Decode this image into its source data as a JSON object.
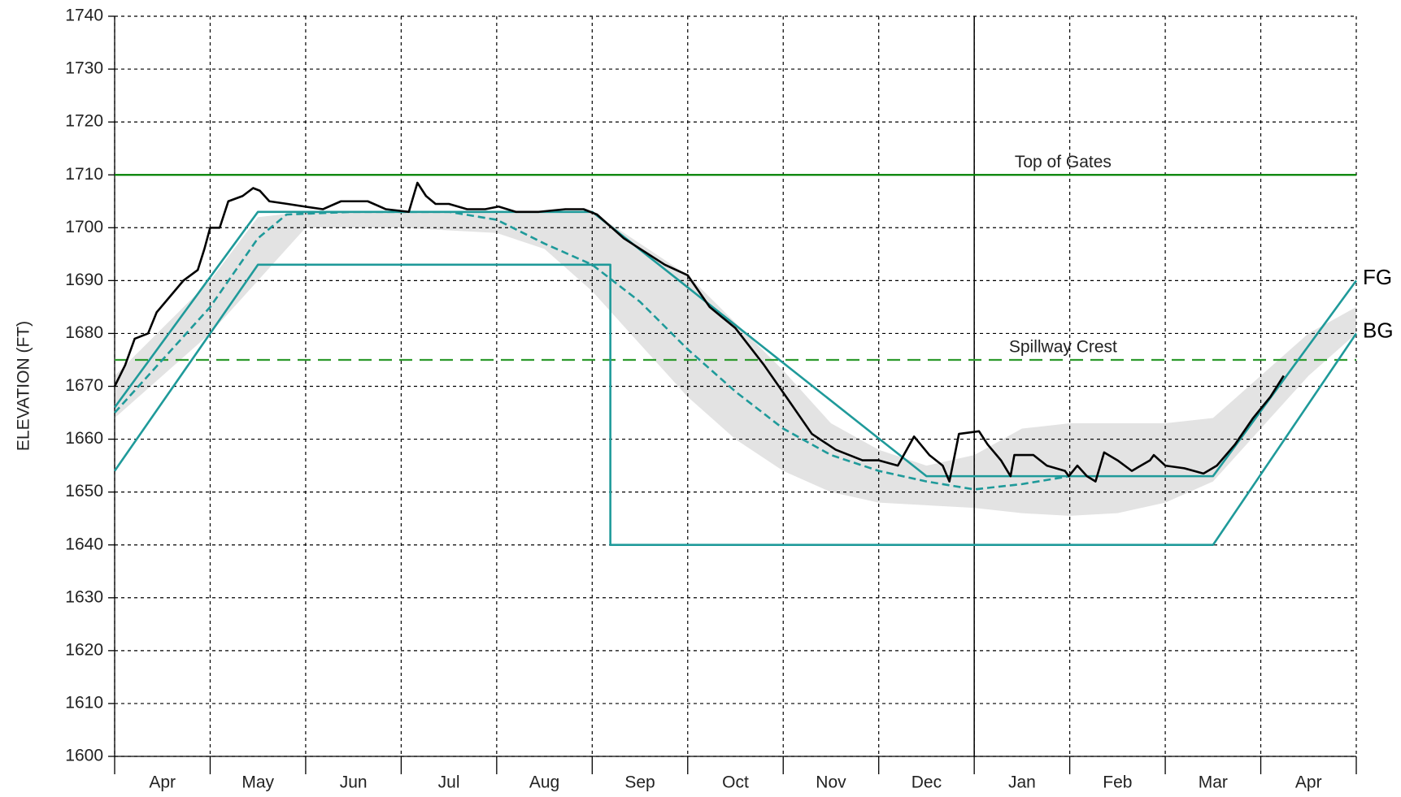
{
  "chart_data": {
    "type": "line",
    "y_label": "ELEVATION (FT)",
    "categories": [
      "Apr",
      "May",
      "Jun",
      "Jul",
      "Aug",
      "Sep",
      "Oct",
      "Nov",
      "Dec",
      "Jan",
      "Feb",
      "Mar",
      "Apr"
    ],
    "xlim": [
      0,
      13
    ],
    "xticks": [
      0,
      1,
      2,
      3,
      4,
      5,
      6,
      7,
      8,
      9,
      10,
      11,
      12,
      13
    ],
    "ylim": [
      1600,
      1740
    ],
    "yticks": [
      1600,
      1610,
      1620,
      1630,
      1640,
      1650,
      1660,
      1670,
      1680,
      1690,
      1700,
      1710,
      1720,
      1730,
      1740
    ],
    "grid": true,
    "marker_x": 9,
    "reference_lines": [
      {
        "label": "Top of Gates",
        "value": 1710,
        "color": "#008000",
        "dashed": false
      },
      {
        "label": "Spillway Crest",
        "value": 1675,
        "color": "#2e9a2e",
        "dashed": true
      }
    ],
    "band": {
      "color": "#e3e3e3",
      "x": [
        0,
        0.5,
        1,
        1.5,
        2,
        3,
        4,
        4.5,
        5,
        5.5,
        6,
        6.5,
        7,
        7.5,
        8,
        8.5,
        9,
        9.5,
        10,
        10.5,
        11,
        11.5,
        12,
        12.5,
        13
      ],
      "upper": [
        1672,
        1681,
        1690,
        1702,
        1703,
        1703,
        1703,
        1703,
        1703,
        1697,
        1691,
        1682,
        1673,
        1663,
        1658,
        1655,
        1657,
        1662,
        1663,
        1663,
        1663,
        1664,
        1672,
        1680,
        1685
      ],
      "lower": [
        1664,
        1672,
        1680,
        1690,
        1700,
        1700,
        1699,
        1696,
        1688,
        1678,
        1668,
        1660,
        1654,
        1650,
        1648,
        1647.5,
        1647,
        1646,
        1645.5,
        1646,
        1648,
        1652,
        1662,
        1672,
        1680
      ]
    },
    "series": [
      {
        "name": "FG",
        "color": "#1f9a9a",
        "dashed": false,
        "x": [
          0,
          1.5,
          5,
          8.5,
          11.5,
          13
        ],
        "values": [
          1666,
          1703,
          1703,
          1653,
          1653,
          1690
        ]
      },
      {
        "name": "BG",
        "color": "#1f9a9a",
        "dashed": false,
        "x": [
          0,
          1.5,
          5.19,
          5.19,
          11.5,
          13
        ],
        "values": [
          1654,
          1693,
          1693,
          1640,
          1640,
          1680
        ]
      },
      {
        "color": "#1f9a9a",
        "dashed": true,
        "x": [
          0,
          0.5,
          1,
          1.5,
          1.8,
          2.5,
          3.5,
          4,
          4.5,
          5,
          5.5,
          6,
          6.5,
          7,
          7.5,
          8,
          8.5,
          9,
          9.5,
          10
        ],
        "values": [
          1665,
          1675,
          1685,
          1698,
          1702.5,
          1703,
          1703,
          1701.5,
          1697,
          1693,
          1686,
          1677,
          1669,
          1662,
          1657,
          1654,
          1652,
          1650.5,
          1651.5,
          1653
        ]
      },
      {
        "color": "#000000",
        "dashed": false,
        "x": [
          0,
          0.11,
          0.21,
          0.35,
          0.44,
          0.58,
          0.72,
          0.87,
          0.94,
          1.0,
          1.1,
          1.19,
          1.34,
          1.45,
          1.52,
          1.62,
          1.81,
          1.99,
          2.18,
          2.37,
          2.65,
          2.84,
          3.08,
          3.17,
          3.26,
          3.36,
          3.5,
          3.69,
          3.88,
          4.02,
          4.2,
          4.44,
          4.72,
          4.91,
          5.05,
          5.33,
          5.76,
          6.0,
          6.23,
          6.5,
          6.8,
          7.07,
          7.3,
          7.55,
          7.83,
          8.0,
          8.2,
          8.37,
          8.53,
          8.67,
          8.74,
          8.84,
          9.05,
          9.14,
          9.28,
          9.38,
          9.42,
          9.62,
          9.76,
          9.95,
          9.99,
          10.08,
          10.18,
          10.27,
          10.36,
          10.5,
          10.65,
          10.84,
          10.88,
          11.0,
          11.2,
          11.4,
          11.54,
          11.73,
          11.92,
          12.1,
          12.24
        ],
        "values": [
          1670,
          1674,
          1679,
          1680,
          1684,
          1687,
          1690,
          1692,
          1696,
          1700,
          1700,
          1705,
          1706,
          1707.5,
          1707,
          1705,
          1704.5,
          1704,
          1703.5,
          1705,
          1705,
          1703.5,
          1703,
          1708.5,
          1706,
          1704.5,
          1704.5,
          1703.5,
          1703.5,
          1704,
          1703,
          1703,
          1703.5,
          1703.5,
          1702.5,
          1698,
          1693,
          1691,
          1685,
          1681,
          1674,
          1667,
          1661,
          1658,
          1656,
          1656,
          1655,
          1660.5,
          1657,
          1655,
          1652,
          1661,
          1661.5,
          1659,
          1656,
          1653,
          1657,
          1657,
          1655,
          1654,
          1653,
          1655,
          1653,
          1652,
          1657.5,
          1656,
          1654,
          1656,
          1657,
          1655,
          1654.5,
          1653.5,
          1655,
          1659,
          1664,
          1668,
          1672
        ]
      }
    ]
  }
}
